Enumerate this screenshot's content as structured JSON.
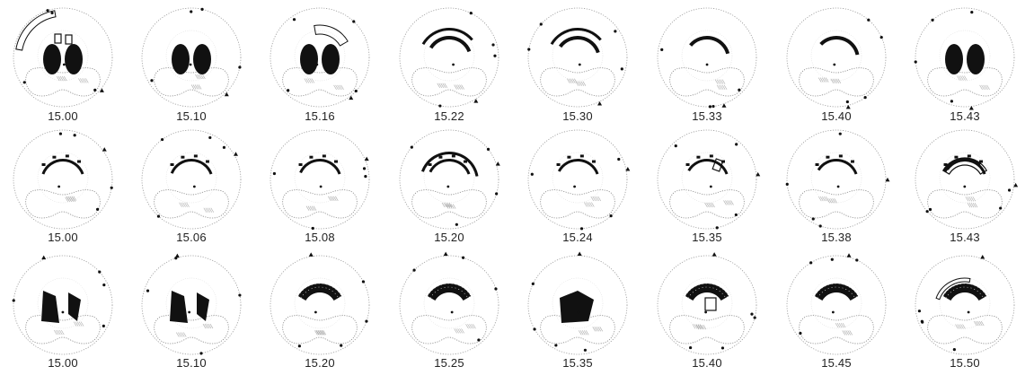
{
  "rows": [
    {
      "labels": [
        "15.00",
        "15.10",
        "15.16",
        "15.22",
        "15.30",
        "15.33",
        "15.40",
        "15.43"
      ]
    },
    {
      "labels": [
        "15.00",
        "15.06",
        "15.08",
        "15.20",
        "15.24",
        "15.35",
        "15.38",
        "15.43"
      ]
    },
    {
      "labels": [
        "15.00",
        "15.10",
        "15.20",
        "15.25",
        "15.35",
        "15.40",
        "15.45",
        "15.50"
      ]
    }
  ]
}
